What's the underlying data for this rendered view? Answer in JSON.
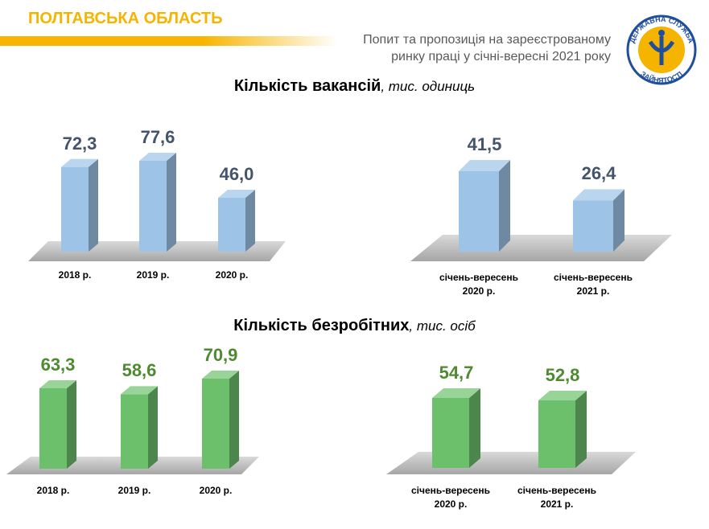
{
  "header": {
    "title": "ПОЛТАВСЬКА ОБЛАСТЬ",
    "subtitle": [
      "Попит та пропозиція на зареєстрованому",
      "ринку праці у січні-вересні 2021 року"
    ],
    "logo": {
      "top": "ДЕРЖАВНА СЛУЖБА",
      "bottom": "ЗАЙНЯТОСТІ"
    }
  },
  "sections": [
    {
      "title": "Кількість вакансій",
      "unit": ", тис.  одиниць"
    },
    {
      "title": "Кількість безробітних",
      "unit": ", тис. осіб"
    }
  ],
  "chart_data": [
    {
      "type": "bar",
      "categories": [
        "2018 р.",
        "2019 р.",
        "2020 р."
      ],
      "values": [
        72.3,
        77.6,
        46.0
      ],
      "value_labels": [
        "72,3",
        "77,6",
        "46,0"
      ],
      "color": "#9dc3e6",
      "label_color": "#44546a"
    },
    {
      "type": "bar",
      "categories": [
        "січень-вересень 2020 р.",
        "січень-вересень 2021 р."
      ],
      "values": [
        41.5,
        26.4
      ],
      "value_labels": [
        "41,5",
        "26,4"
      ],
      "color": "#9dc3e6",
      "label_color": "#44546a"
    },
    {
      "type": "bar",
      "categories": [
        "2018 р.",
        "2019 р.",
        "2020 р."
      ],
      "values": [
        63.3,
        58.6,
        70.9
      ],
      "value_labels": [
        "63,3",
        "58,6",
        "70,9"
      ],
      "color": "#6cc06c",
      "label_color": "#4e8a2f"
    },
    {
      "type": "bar",
      "categories": [
        "січень-вересень 2020 р.",
        "січень-вересень 2021 р."
      ],
      "values": [
        54.7,
        52.8
      ],
      "value_labels": [
        "54,7",
        "52,8"
      ],
      "color": "#6cc06c",
      "label_color": "#4e8a2f"
    }
  ]
}
